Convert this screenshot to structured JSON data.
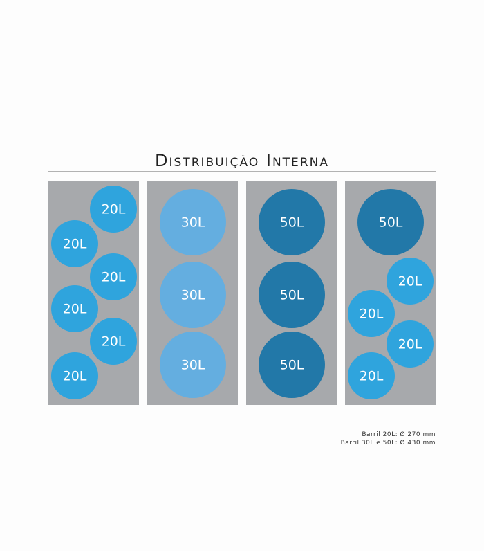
{
  "title": "Distribuição Interna",
  "panels": [
    {
      "barrels": [
        {
          "label": "20L"
        },
        {
          "label": "20L"
        },
        {
          "label": "20L"
        },
        {
          "label": "20L"
        },
        {
          "label": "20L"
        },
        {
          "label": "20L"
        }
      ]
    },
    {
      "barrels": [
        {
          "label": "30L"
        },
        {
          "label": "30L"
        },
        {
          "label": "30L"
        }
      ]
    },
    {
      "barrels": [
        {
          "label": "50L"
        },
        {
          "label": "50L"
        },
        {
          "label": "50L"
        }
      ]
    },
    {
      "barrels": [
        {
          "label": "50L"
        },
        {
          "label": "20L"
        },
        {
          "label": "20L"
        },
        {
          "label": "20L"
        },
        {
          "label": "20L"
        }
      ]
    }
  ],
  "notes": [
    "Barril 20L: Ø 270 mm",
    "Barril 30L e 50L: Ø 430 mm"
  ]
}
